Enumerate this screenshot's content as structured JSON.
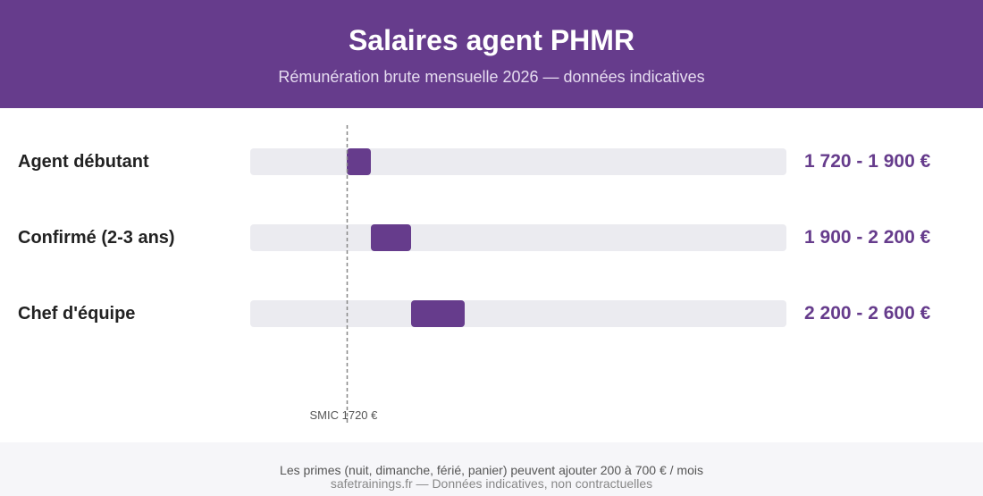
{
  "header": {
    "title": "Salaires agent PHMR",
    "subtitle": "Rémunération brute mensuelle 2026 — données indicatives"
  },
  "colors": {
    "header_bg": "#663c8c",
    "bar": "#663c8c",
    "track": "#ebebf0",
    "value_text": "#663c8c"
  },
  "chart_data": {
    "type": "bar",
    "orientation": "horizontal-range",
    "title": "Salaires agent PHMR",
    "subtitle": "Rémunération brute mensuelle 2026 — données indicatives",
    "xlabel": "",
    "ylabel": "",
    "xlim": [
      1000,
      5000
    ],
    "grid": false,
    "legend": "none",
    "categories": [
      "Agent débutant",
      "Confirmé (2-3 ans)",
      "Chef d'équipe"
    ],
    "ranges": [
      [
        1720,
        1900
      ],
      [
        1900,
        2200
      ],
      [
        2200,
        2600
      ]
    ],
    "value_labels": [
      "1 720 - 1 900 €",
      "1 900 - 2 200 €",
      "2 200 - 2 600 €"
    ],
    "reference_line": {
      "value": 1720,
      "label": "SMIC 1720 €"
    }
  },
  "footer": {
    "note": "Les primes (nuit, dimanche, férié, panier) peuvent ajouter 200 à 700 € / mois",
    "source": "safetrainings.fr — Données indicatives, non contractuelles"
  }
}
